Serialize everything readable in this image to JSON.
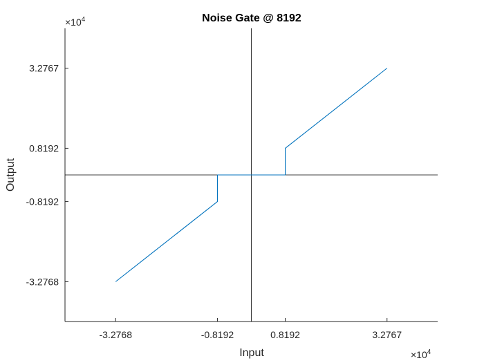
{
  "chart_data": {
    "type": "line",
    "title": "Noise Gate @ 8192",
    "xlabel": "Input",
    "ylabel": "Output",
    "xlim": [
      -4.5,
      4.5
    ],
    "ylim": [
      -4.5,
      4.5
    ],
    "xticks": [
      -3.2768,
      -0.8192,
      0.8192,
      3.2767
    ],
    "yticks": [
      -3.2768,
      -0.8192,
      0.8192,
      3.2767
    ],
    "xtick_labels": [
      "-3.2768",
      "-0.8192",
      "0.8192",
      "3.2767"
    ],
    "ytick_labels": [
      "-3.2768",
      "-0.8192",
      "0.8192",
      "3.2767"
    ],
    "x_exponent": {
      "base": "×10",
      "power": "4"
    },
    "y_exponent": {
      "base": "×10",
      "power": "4"
    },
    "grid": false,
    "reference_lines": {
      "x": 0,
      "y": 0
    },
    "series": [
      {
        "color": "#0072BD",
        "x": [
          -3.2768,
          -0.8192,
          -0.8192,
          0.8192,
          0.8192,
          3.2767
        ],
        "y": [
          -3.2768,
          -0.8192,
          0.0,
          0.0,
          0.8192,
          3.2767
        ]
      }
    ]
  }
}
